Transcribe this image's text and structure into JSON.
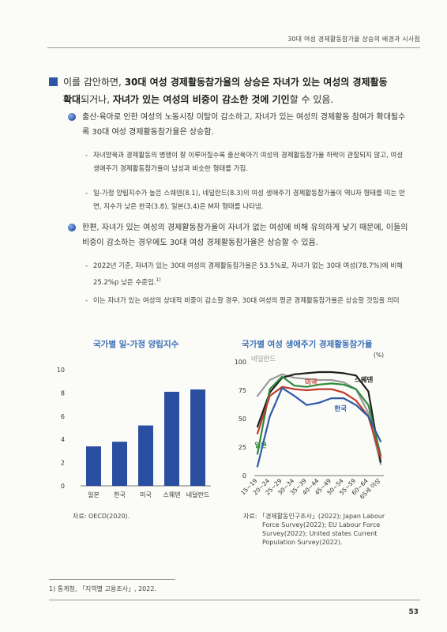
{
  "header": {
    "title": "30대 여성 경제활동참가율 상승의 배경과 시사점"
  },
  "lead": {
    "p1": "이를 감안하면, ",
    "b1": "30대 여성 경제활동참가율의 상승은 자녀가 있는 여성의 경제활동",
    "b2": "확대",
    "p2": "되거나, ",
    "b3": "자녀가 있는 여성의 비중이 감소한 것에 기인",
    "p3": "할 수 있음."
  },
  "bullets": [
    {
      "text": "출산·육아로 인한 여성의 노동시장 이탈이 감소하고, 자녀가 있는 여성의 경제활동 참여가 확대될수록 30대 여성 경제활동참가율은 상승함."
    },
    {
      "text": "한편, 자녀가 있는 여성의 경제활동참가율이 자녀가 없는 여성에 비해 유의하게 낮기 때문에, 이들의 비중이 감소하는 경우에도 30대 여성 경제활동참가율은 상승할 수 있음."
    }
  ],
  "dashes": [
    {
      "marker": "-",
      "text": "자녀양육과 경제활동의 병행이 잘 이루어질수록 출산육아기 여성의 경제활동참가율 하락이 관찰되지 않고, 여성 생애주기 경제활동참가율이 남성과 비슷한 형태를 가짐."
    },
    {
      "marker": "-",
      "text": "일-가정 양립지수가 높은 스웨덴(8.1), 네덜란드(8.3)의 여성 생애주기 경제활동참가율이 역U자 형태를 띠는 반면, 지수가 낮은 한국(3.8), 일본(3.4)은 M자 형태를 나타냄."
    },
    {
      "marker": "-",
      "text": "2022년 기준, 자녀가 있는 30대 여성의 경제활동참가율은 53.5%로, 자녀가 없는 30대 여성(78.7%)에 비해 25.2%p 낮은 수준임.",
      "sup": "1)"
    },
    {
      "marker": "-",
      "text": "이는 자녀가 있는 여성의 상대적 비중이 감소할 경우, 30대 여성의 평균 경제활동참가율은 상승할 것임을 의미"
    }
  ],
  "chart_data": [
    {
      "type": "bar",
      "title": "국가별 일-가정 양립지수",
      "categories": [
        "일본",
        "한국",
        "미국",
        "스웨덴",
        "네덜란드"
      ],
      "values": [
        3.4,
        3.8,
        5.2,
        8.1,
        8.3
      ],
      "ylim": [
        0,
        10
      ],
      "yticks": [
        "0",
        "2",
        "4",
        "6",
        "8",
        "10"
      ],
      "color": "#2b4fa0",
      "grid": false
    },
    {
      "type": "line",
      "title": "국가별 여성 생애주기 경제활동참가율",
      "unit": "(%)",
      "x": [
        "15~19",
        "20~24",
        "25~29",
        "30~34",
        "35~39",
        "40~44",
        "45~49",
        "50~54",
        "55~59",
        "60~64",
        "65세 이상"
      ],
      "ylim": [
        0,
        100
      ],
      "yticks": [
        "0",
        "25",
        "50",
        "75",
        "100"
      ],
      "series": [
        {
          "name": "네덜란드",
          "color": "#9a9a9a",
          "values": [
            70,
            84,
            89,
            86,
            85,
            84,
            84,
            82,
            76,
            55,
            10
          ]
        },
        {
          "name": "스웨덴",
          "color": "#1f1f1f",
          "values": [
            43,
            73,
            86,
            89,
            90,
            91,
            91,
            90,
            88,
            74,
            12
          ]
        },
        {
          "name": "일본",
          "color": "#2e8b3e",
          "values": [
            19,
            76,
            87,
            79,
            78,
            80,
            81,
            80,
            76,
            62,
            18
          ]
        },
        {
          "name": "미국",
          "color": "#c0392b",
          "values": [
            37,
            70,
            78,
            76,
            75,
            76,
            76,
            73,
            66,
            52,
            16
          ]
        },
        {
          "name": "한국",
          "color": "#2d5aa8",
          "values": [
            8,
            52,
            77,
            70,
            62,
            64,
            68,
            68,
            62,
            52,
            30
          ]
        }
      ],
      "grid": false
    }
  ],
  "sources": {
    "left": "자료: OECD(2020).",
    "right_lines": [
      "자료: 「경제활동인구조사」(2022); Japan Labour",
      "Force Survey(2022); EU Labour Force",
      "Survey(2022); United states Current",
      "Population Survey(2022)."
    ]
  },
  "footnote": "1) 통계청, 「지역별 고용조사」, 2022.",
  "page_number": "53"
}
